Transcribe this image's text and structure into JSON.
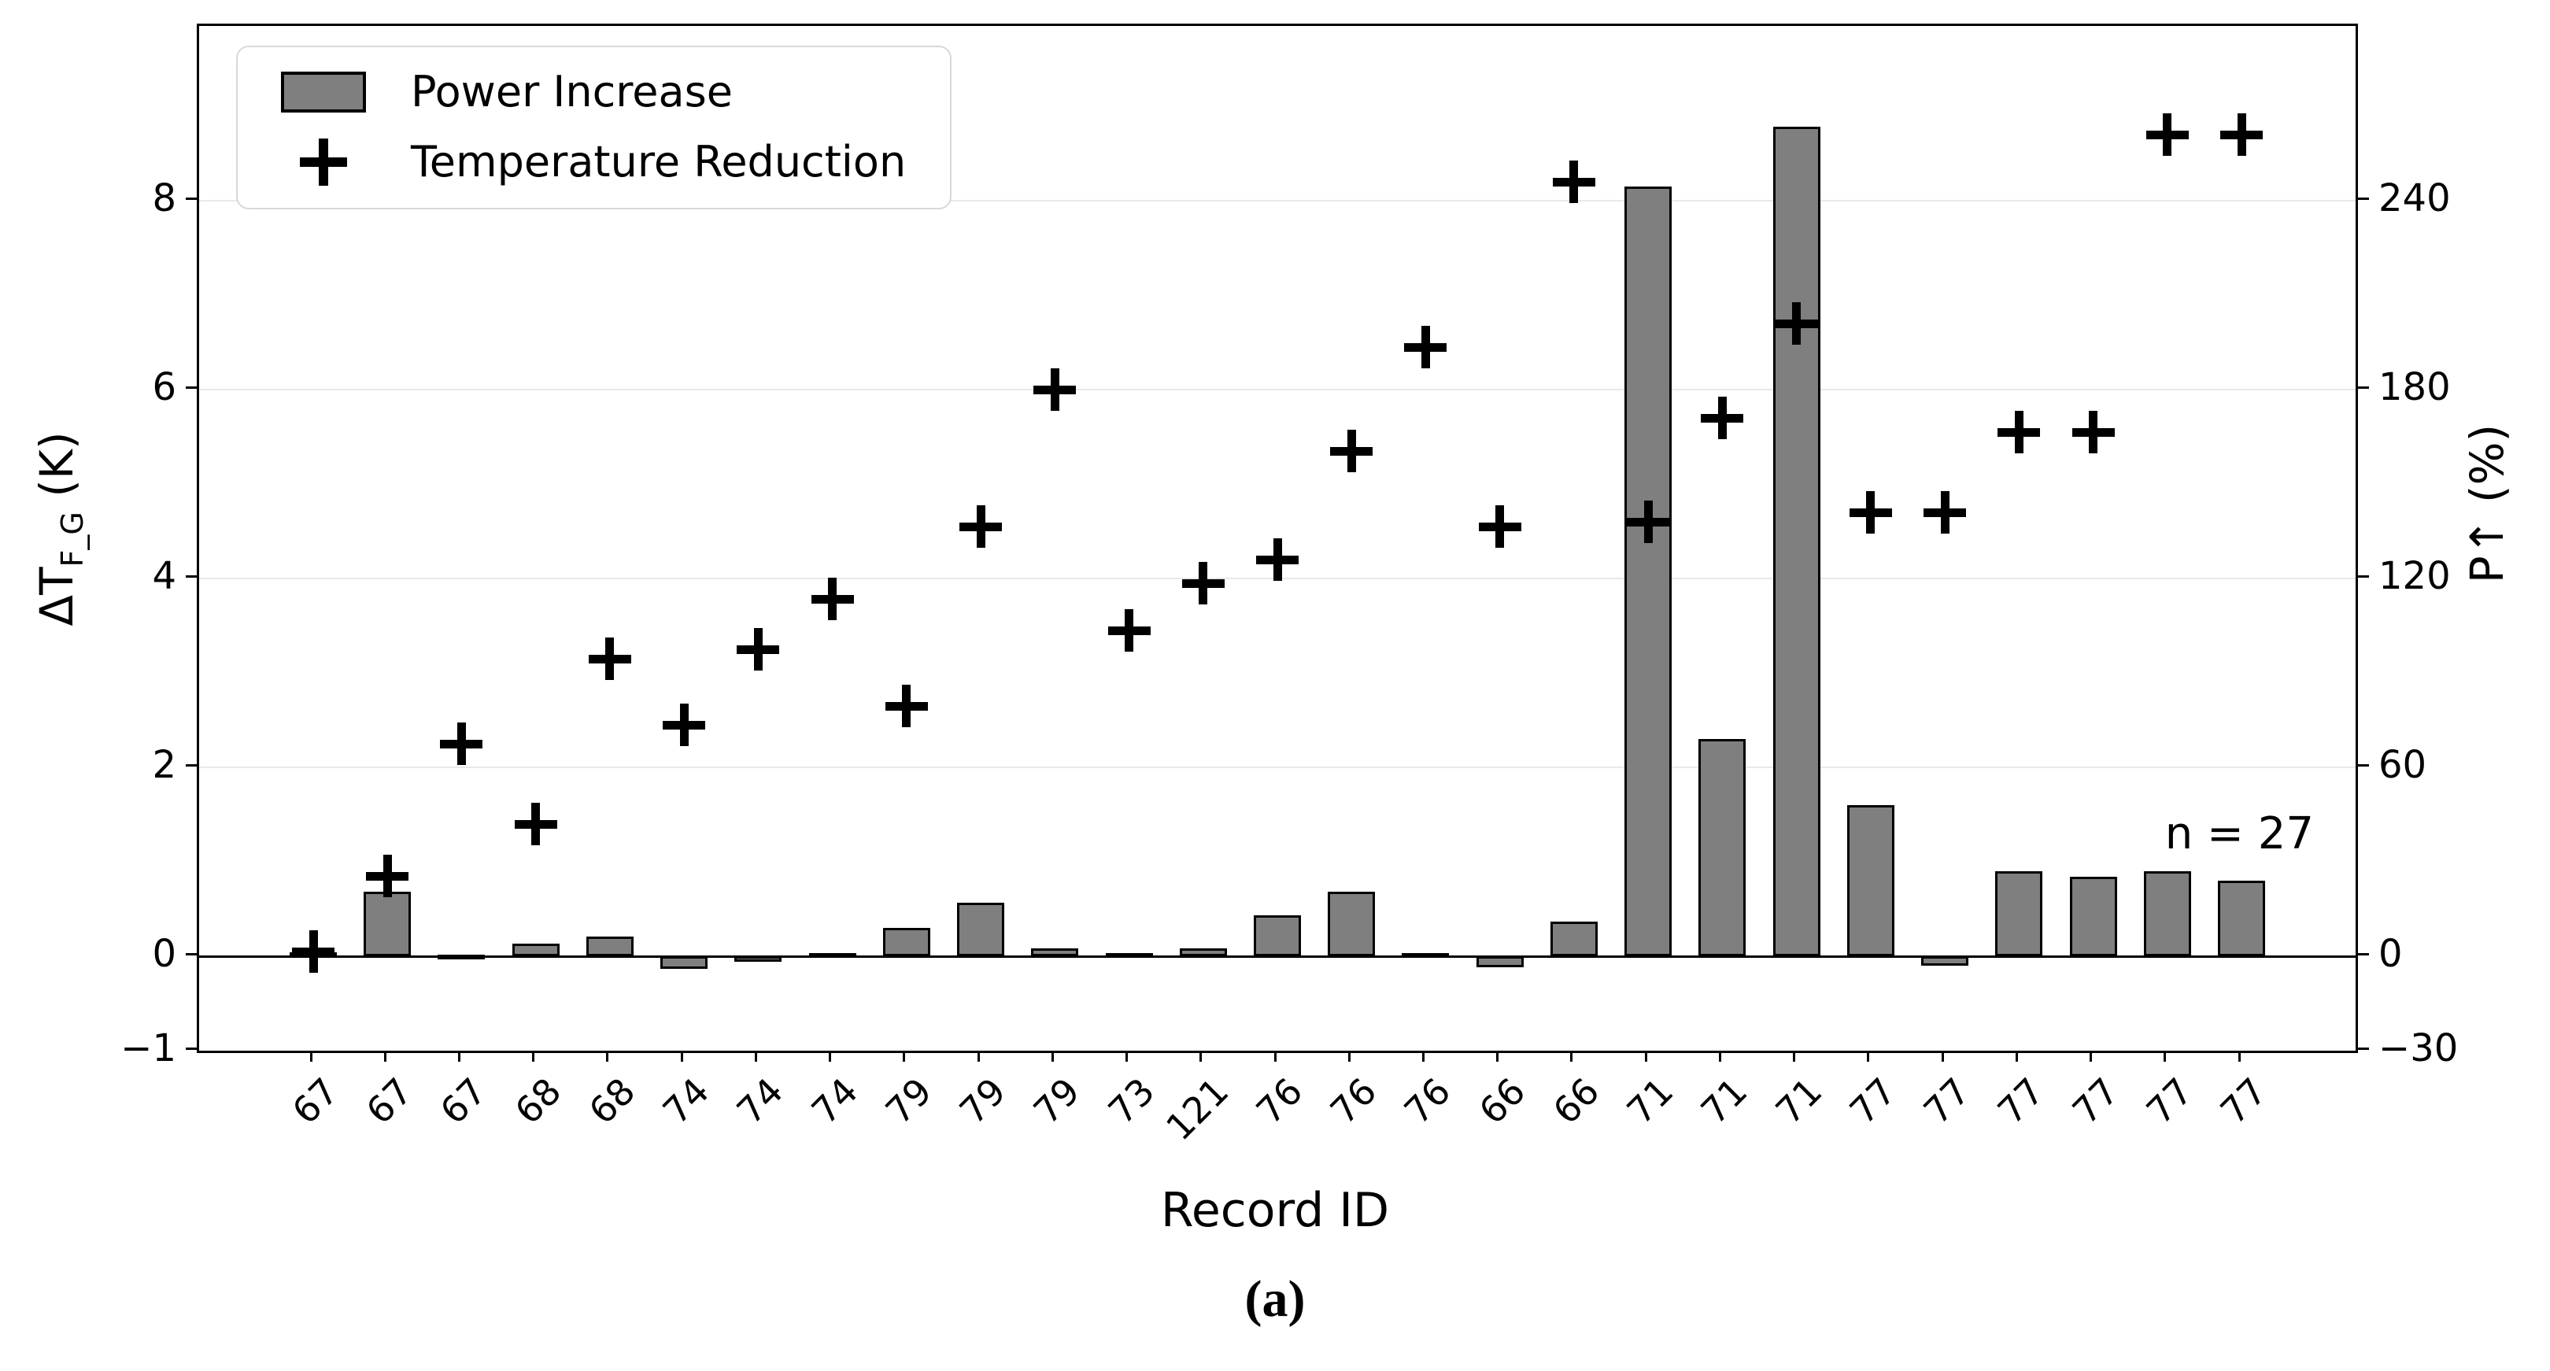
{
  "figure": {
    "caption": "(a)",
    "annotation": "n = 27",
    "background": "#ffffff"
  },
  "legend": {
    "items": [
      {
        "label": "Power Increase",
        "icon": "bar-swatch-icon"
      },
      {
        "label": "Temperature Reduction",
        "icon": "plus-marker-icon"
      }
    ]
  },
  "axes": {
    "x": {
      "label": "Record ID",
      "tick_labels": [
        "67",
        "67",
        "67",
        "68",
        "68",
        "74",
        "74",
        "74",
        "79",
        "79",
        "79",
        "73",
        "121",
        "76",
        "76",
        "76",
        "66",
        "66",
        "71",
        "71",
        "71",
        "77",
        "77",
        "77",
        "77",
        "77",
        "77"
      ]
    },
    "y_left": {
      "label": "ΔT_F_G (K)",
      "label_main": "ΔT",
      "label_sub": "F_G",
      "label_unit": " (K)",
      "ticks": [
        -1,
        0,
        2,
        4,
        6,
        8
      ],
      "lim": [
        -1,
        9.85
      ]
    },
    "y_right": {
      "label": "P↑ (%)",
      "ticks": [
        -30,
        0,
        60,
        120,
        180,
        240
      ],
      "lim": [
        -30,
        295.5
      ]
    }
  },
  "chart_data": {
    "type": "bar",
    "title": "",
    "xlabel": "Record ID",
    "ylabel_left": "ΔT_F_G (K)",
    "ylabel_right": "P↑ (%)",
    "ylim_left": [
      -1,
      9.85
    ],
    "ylim_right": [
      -30,
      295.5
    ],
    "grid": "horizontal-light",
    "legend_position": "upper-left",
    "sample_size": 27,
    "categories": [
      "67",
      "67",
      "67",
      "68",
      "68",
      "74",
      "74",
      "74",
      "79",
      "79",
      "79",
      "73",
      "121",
      "76",
      "76",
      "76",
      "66",
      "66",
      "71",
      "71",
      "71",
      "77",
      "77",
      "77",
      "77",
      "77",
      "77"
    ],
    "series": [
      {
        "name": "Power Increase",
        "type": "bar",
        "axis": "right",
        "unit": "%",
        "color": "#7f7f7f",
        "edge_color": "#000000",
        "values_K": [
          0.04,
          0.68,
          0.01,
          0.13,
          0.21,
          -0.13,
          -0.06,
          0.03,
          0.3,
          0.57,
          0.08,
          0.03,
          0.08,
          0.43,
          0.68,
          0.03,
          -0.12,
          0.37,
          8.15,
          2.3,
          8.78,
          1.6,
          -0.1,
          0.9,
          0.84,
          0.9,
          0.8
        ],
        "values_percent": [
          1.2,
          20.4,
          0.3,
          3.9,
          6.3,
          -3.9,
          -1.8,
          0.9,
          9.0,
          17.1,
          2.4,
          0.9,
          2.4,
          12.9,
          20.4,
          0.9,
          -3.6,
          11.1,
          244.5,
          69.0,
          263.4,
          48.0,
          -3.0,
          27.0,
          25.2,
          27.0,
          24.0
        ]
      },
      {
        "name": "Temperature Reduction",
        "type": "scatter-plus",
        "axis": "left",
        "unit": "K",
        "color": "#000000",
        "values_K": [
          0.05,
          0.85,
          2.25,
          1.4,
          3.15,
          2.45,
          3.25,
          3.78,
          2.65,
          4.55,
          6.0,
          3.45,
          3.95,
          4.2,
          5.35,
          6.45,
          4.55,
          8.2,
          4.6,
          5.7,
          6.7,
          4.7,
          4.7,
          5.55,
          5.55,
          8.7,
          8.7
        ],
        "values_percent": [
          1.5,
          25.5,
          67.5,
          42.0,
          94.5,
          73.5,
          97.5,
          113.4,
          79.5,
          136.5,
          180.0,
          103.5,
          118.5,
          126.0,
          160.5,
          193.5,
          136.5,
          246.0,
          138.0,
          171.0,
          201.0,
          141.0,
          141.0,
          166.5,
          166.5,
          261.0,
          261.0
        ]
      }
    ],
    "style": {
      "bar_fill": "#7f7f7f",
      "bar_edge": "#000000",
      "grid_color": "#e9e9e9",
      "spine_color": "#000000",
      "marker": "plus"
    }
  }
}
